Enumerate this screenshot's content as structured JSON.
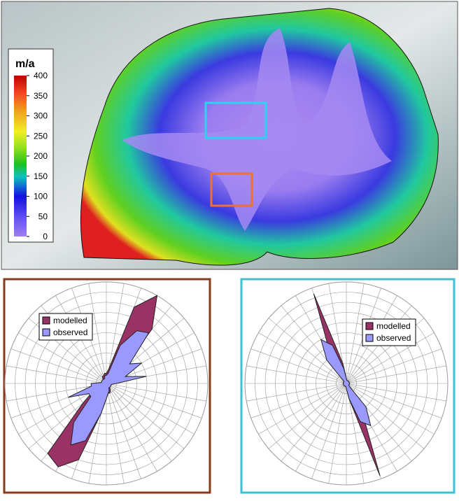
{
  "colorbar": {
    "label": "m/a",
    "ticks": [
      0,
      50,
      100,
      150,
      200,
      250,
      300,
      350,
      400
    ],
    "lim": [
      0,
      400
    ]
  },
  "roses": [
    {
      "rlim": [
        0,
        10
      ],
      "series": [
        {
          "name": "modelled",
          "color": "#993366",
          "values": [
            1,
            1.5,
            8,
            10,
            7,
            2,
            1.5,
            1,
            1,
            0.8,
            0.5,
            0.5,
            0.5,
            0.5,
            0.5,
            0.8,
            1,
            1,
            1.5,
            3,
            8,
            9.5,
            9,
            3,
            1.5,
            1.5,
            1,
            0.8,
            0.5,
            0.5,
            0.5,
            0.5,
            0.5,
            0.8,
            0.8,
            1
          ]
        },
        {
          "name": "observed",
          "color": "#9999ff",
          "values": [
            0.8,
            1,
            4,
            6,
            6.5,
            3,
            4,
            2,
            4,
            1,
            0.5,
            0.5,
            0.5,
            0.5,
            0.5,
            0.5,
            0.8,
            1,
            1.5,
            3,
            6,
            7,
            5,
            2,
            2,
            4,
            1.5,
            1.5,
            0.5,
            0.5,
            0.5,
            0.5,
            0.5,
            0.5,
            0.5,
            0.8
          ]
        }
      ]
    },
    {
      "rlim": [
        0,
        10
      ],
      "series": [
        {
          "name": "modelled",
          "color": "#993366",
          "values": [
            0.5,
            0.3,
            0.3,
            0.3,
            0.3,
            0.3,
            0.3,
            0.3,
            0.3,
            0.3,
            0.3,
            0.3,
            0.3,
            0.3,
            0.3,
            3,
            9.7,
            1.5,
            0.5,
            0.3,
            0.3,
            0.3,
            0.3,
            0.3,
            0.3,
            0.3,
            0.3,
            0.3,
            0.3,
            0.3,
            0.3,
            0.3,
            0.3,
            3,
            9.4,
            2
          ]
        },
        {
          "name": "observed",
          "color": "#9999ff",
          "values": [
            0.5,
            0.3,
            0.3,
            0.3,
            0.3,
            0.3,
            0.3,
            0.3,
            0.3,
            0.3,
            0.3,
            0.3,
            0.3,
            0.3,
            3,
            4.8,
            4,
            1.5,
            0.5,
            0.3,
            0.3,
            0.3,
            0.3,
            0.3,
            0.3,
            0.3,
            0.3,
            0.3,
            0.3,
            0.3,
            0.3,
            0.3,
            3,
            5,
            4,
            1.5
          ]
        }
      ]
    }
  ]
}
